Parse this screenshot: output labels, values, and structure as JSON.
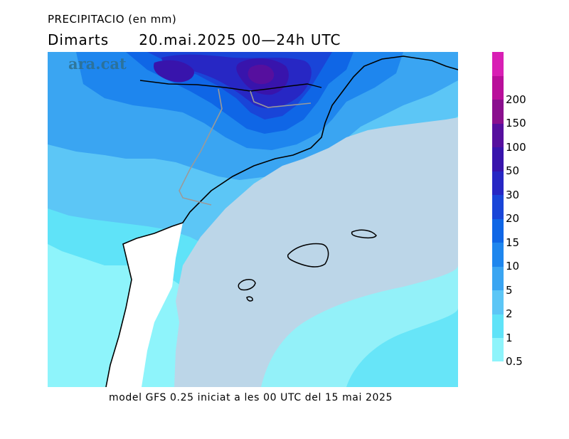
{
  "title": "PRECIPITACIO (en mm)",
  "subtitle": {
    "day": "Dimarts",
    "period": "20.mai.2025 00—24h UTC"
  },
  "watermark": "ara.cat",
  "footer": "model GFS 0.25 iniciat a les 00 UTC del 15 mai 2025",
  "legend": {
    "ticks": [
      "0.5",
      "1",
      "2",
      "5",
      "10",
      "15",
      "20",
      "30",
      "50",
      "100",
      "150",
      "200"
    ],
    "colors": [
      "#8ef4fb",
      "#5fe3f8",
      "#5cc6f6",
      "#3aa5f2",
      "#1e86ee",
      "#0f66e6",
      "#1945d8",
      "#2727c4",
      "#3814ac",
      "#560f9e",
      "#8a0f8e",
      "#b90f9a",
      "#d81fb4"
    ]
  },
  "colors": {
    "sea": "#bcd6e8",
    "land_outside": "#ffffff",
    "coast": "#000000",
    "border": "#9a9a9a"
  }
}
